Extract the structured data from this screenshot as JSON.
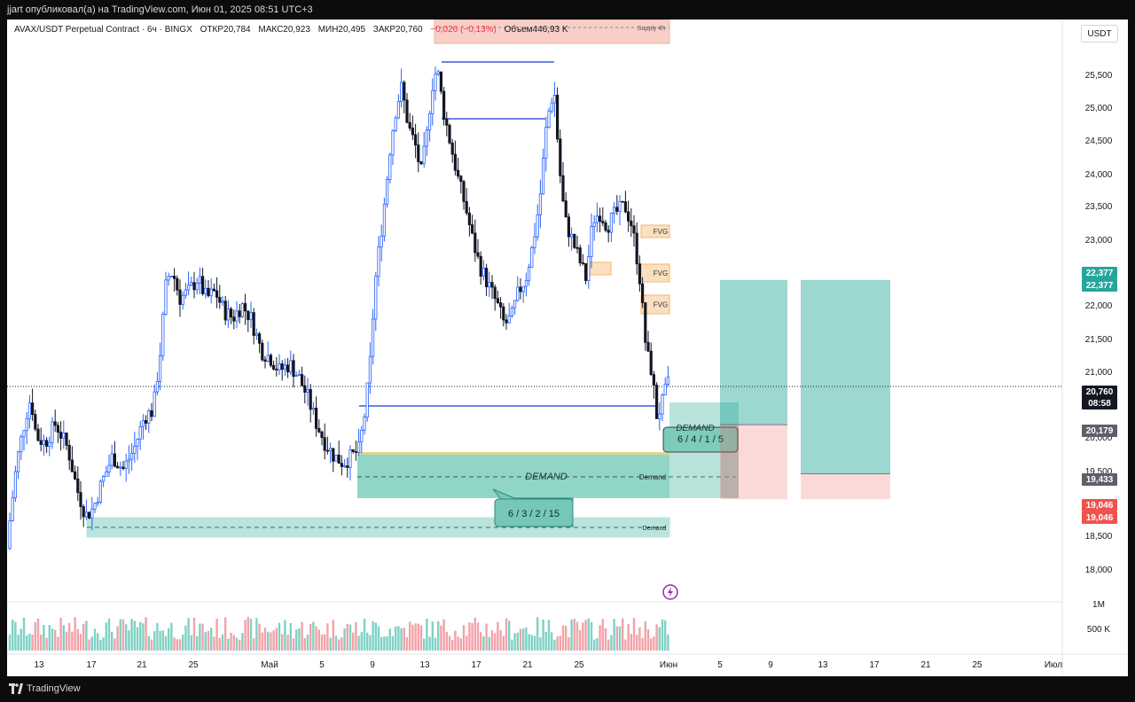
{
  "header": {
    "publisher_line": "jjart опубликовал(а) на TradingView.com, Июн 01, 2025 08:51 UTC+3"
  },
  "legend": {
    "symbol": "AVAX/USDT Perpetual Contract · 6ч · BINGX",
    "open": "ОТКР20,784",
    "high": "МАКС20,923",
    "low": "МИН20,495",
    "close": "ЗАКР20,760",
    "change": "−0,026 (−0,13%)",
    "volume": "Объем446,93 K"
  },
  "currency_button": "USDT",
  "footer": {
    "brand": "TradingView"
  },
  "colors": {
    "candle": "#131722",
    "wick_up": "#2962ff",
    "demand_zone": "#36b39a",
    "supply_zone": "#f7c6bd",
    "fvg_zone": "#f5b56a",
    "target": "#26a69a",
    "stop": "#ef5350"
  },
  "chart_data": {
    "type": "candlestick",
    "x_axis": {
      "tick_labels": [
        "13",
        "17",
        "21",
        "25",
        "Май",
        "5",
        "9",
        "13",
        "17",
        "21",
        "25",
        "Июн",
        "5",
        "9",
        "13",
        "17",
        "21",
        "25",
        "Июл"
      ]
    },
    "y_axis": {
      "tick_labels": [
        "25,500",
        "25,000",
        "24,500",
        "24,000",
        "23,500",
        "23,000",
        "22,500",
        "22,000",
        "21,500",
        "21,000",
        "20,500",
        "20,000",
        "19,500",
        "18,500",
        "18,000"
      ],
      "ylim": [
        17500,
        26000
      ],
      "volume_labels": [
        "1M",
        "500 K"
      ]
    },
    "price_badges": [
      {
        "value": "22,377",
        "color": "#26a69a"
      },
      {
        "value": "22,377",
        "color": "#26a69a"
      },
      {
        "value": "20,760",
        "color": "#131722"
      },
      {
        "value": "08:58",
        "color": "#131722"
      },
      {
        "value": "20,179",
        "color": "#5d606b"
      },
      {
        "value": "19,433",
        "color": "#5d606b"
      },
      {
        "value": "19,046",
        "color": "#ef5350"
      },
      {
        "value": "19,046",
        "color": "#ef5350"
      }
    ],
    "current_price": 20760,
    "zones": {
      "supply_label": "Supply 4h",
      "fvg_label": "FVG",
      "demand_label": "Demand",
      "demand_big_label": "DEMAND",
      "stats_a": "6 / 3 / 2 / 15",
      "stats_b": "6 / 4 / 1 / 5"
    },
    "positions": [
      {
        "entry": 20179,
        "target": 22377,
        "stop": 19046
      },
      {
        "entry": 19433,
        "target": 22377,
        "stop": 19046
      }
    ],
    "grid": false
  }
}
